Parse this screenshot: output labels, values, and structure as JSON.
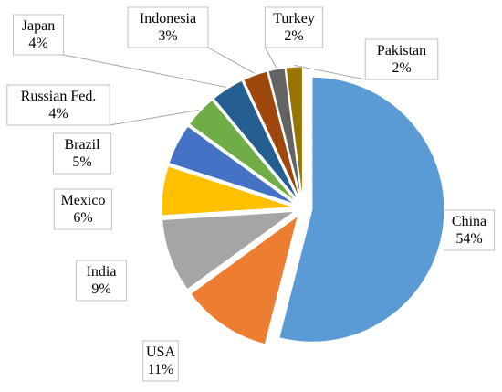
{
  "chart_data": {
    "type": "pie",
    "title": "",
    "legend": "none",
    "slices": [
      {
        "label": "China",
        "value": 54,
        "display": "54%",
        "color": "#5b9bd5"
      },
      {
        "label": "USA",
        "value": 11,
        "display": "11%",
        "color": "#ed7d31"
      },
      {
        "label": "India",
        "value": 9,
        "display": "9%",
        "color": "#a5a5a5"
      },
      {
        "label": "Mexico",
        "value": 6,
        "display": "6%",
        "color": "#ffc000"
      },
      {
        "label": "Brazil",
        "value": 5,
        "display": "5%",
        "color": "#4472c4"
      },
      {
        "label": "Russian Fed.",
        "value": 4,
        "display": "4%",
        "color": "#70ad47"
      },
      {
        "label": "Japan",
        "value": 4,
        "display": "4%",
        "color": "#255e91"
      },
      {
        "label": "Indonesia",
        "value": 3,
        "display": "3%",
        "color": "#9e480e"
      },
      {
        "label": "Turkey",
        "value": 2,
        "display": "2%",
        "color": "#636363"
      },
      {
        "label": "Pakistan",
        "value": 2,
        "display": "2%",
        "color": "#997300"
      }
    ]
  }
}
